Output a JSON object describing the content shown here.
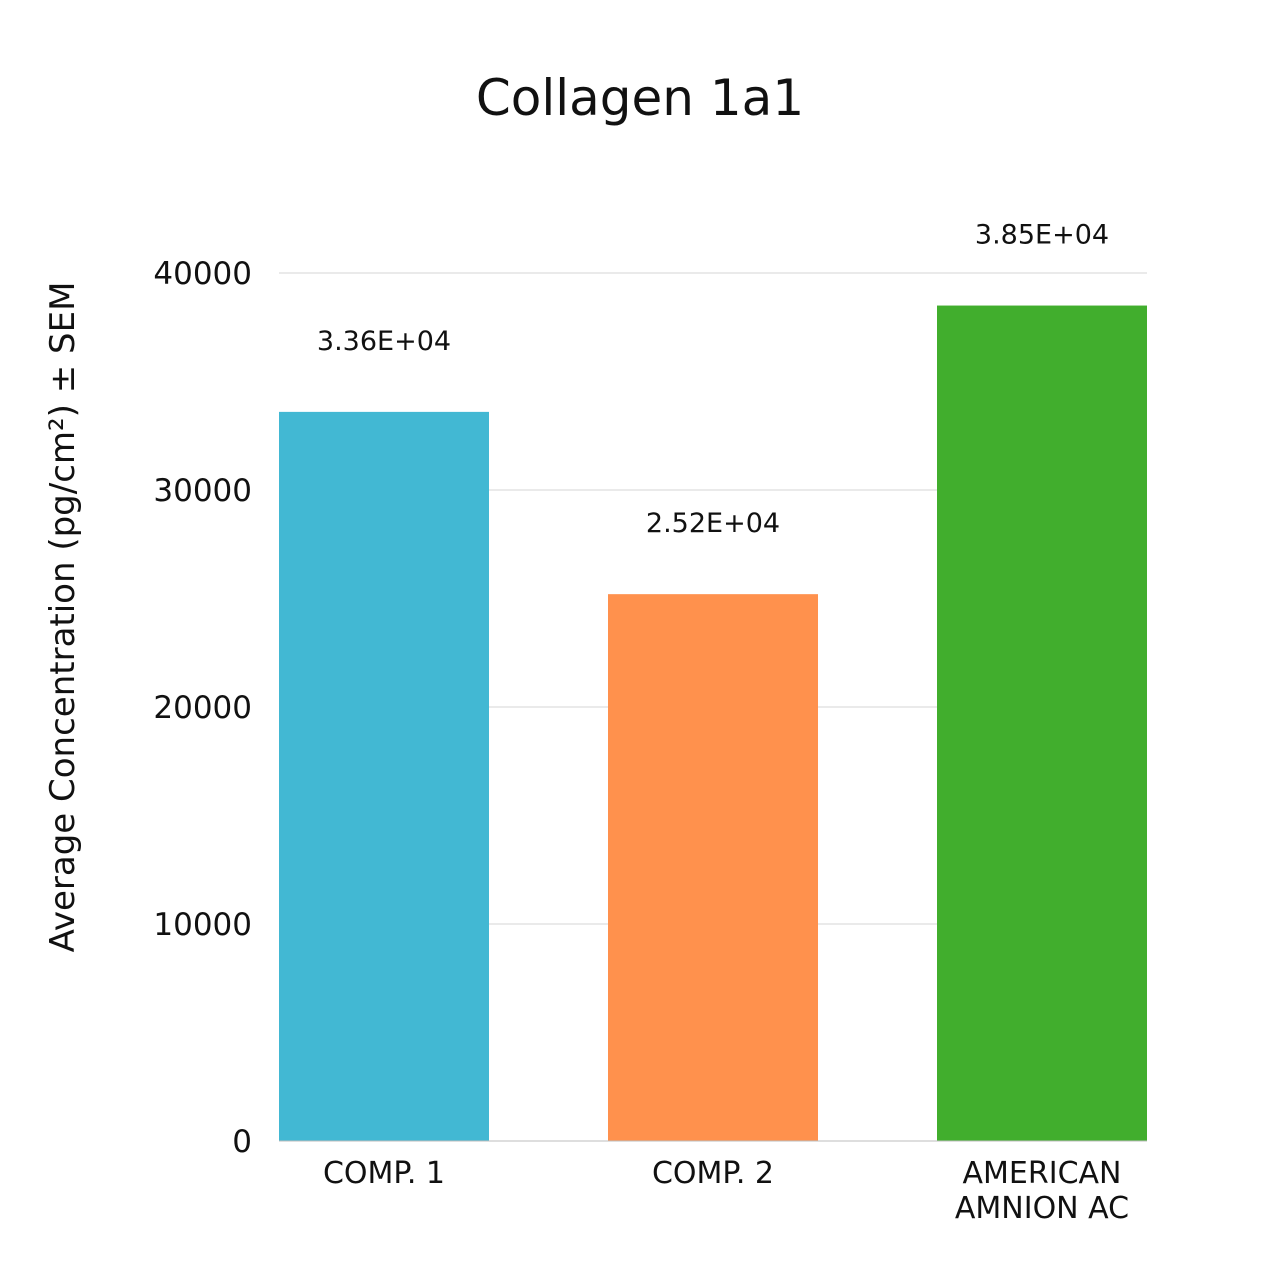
{
  "chart_data": {
    "type": "bar",
    "title": "Collagen 1a1",
    "xlabel": "",
    "ylabel": "Average Concentration (pg/cm²) ± SEM",
    "ylim": [
      0,
      40000
    ],
    "yticks": [
      "0",
      "10000",
      "20000",
      "30000",
      "40000"
    ],
    "grid": true,
    "categories": [
      [
        "COMP. 1"
      ],
      [
        "COMP. 2"
      ],
      [
        "AMERICAN",
        "AMNION AC"
      ]
    ],
    "values": [
      33600,
      25200,
      38500
    ],
    "data_labels": [
      "3.36E+04",
      "2.52E+04",
      "3.85E+04"
    ],
    "colors": [
      "#42b8d3",
      "#ff914d",
      "#41ae2d"
    ]
  }
}
